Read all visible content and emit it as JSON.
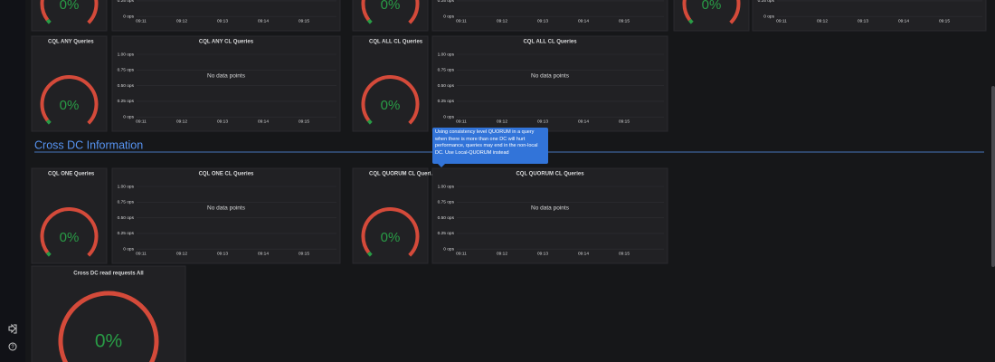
{
  "top_row": {
    "gauge_values": [
      "0%",
      "0%",
      "0%"
    ],
    "graphs": [
      {
        "yticks": [
          "0.25 ops",
          "0 ops"
        ],
        "xticks": [
          "09:11",
          "09:12",
          "09:13",
          "09:14",
          "09:15"
        ]
      },
      {
        "yticks": [
          "0.25 ops",
          "0 ops"
        ],
        "xticks": [
          "09:11",
          "09:12",
          "09:13",
          "09:14",
          "09:15"
        ]
      },
      {
        "yticks": [
          "0.25 ops",
          "0 ops"
        ],
        "xticks": [
          "09:11",
          "09:12",
          "09:13",
          "09:14",
          "09:15"
        ]
      }
    ]
  },
  "row_2": {
    "gauges": [
      {
        "title": "CQL ANY Queries",
        "value": "0%"
      },
      {
        "title": "CQL ALL CL Queries",
        "value": "0%"
      }
    ],
    "graphs": [
      {
        "title": "CQL ANY CL Queries",
        "message": "No data points",
        "yticks": [
          "1.00 ops",
          "0.75 ops",
          "0.50 ops",
          "0.25 ops",
          "0 ops"
        ],
        "xticks": [
          "09:11",
          "09:12",
          "09:13",
          "09:14",
          "09:15"
        ]
      },
      {
        "title": "CQL ALL CL Queries",
        "message": "No data points",
        "yticks": [
          "1.00 ops",
          "0.75 ops",
          "0.50 ops",
          "0.25 ops",
          "0 ops"
        ],
        "xticks": [
          "09:11",
          "09:12",
          "09:13",
          "09:14",
          "09:15"
        ]
      }
    ]
  },
  "section_title": "Cross DC Information",
  "row_3": {
    "gauges": [
      {
        "title": "CQL ONE Queries",
        "value": "0%"
      },
      {
        "title": "CQL QUORUM CL Queri...",
        "value": "0%"
      }
    ],
    "graphs": [
      {
        "title": "CQL ONE CL Queries",
        "message": "No data points",
        "yticks": [
          "1.00 ops",
          "0.75 ops",
          "0.50 ops",
          "0.25 ops",
          "0 ops"
        ],
        "xticks": [
          "09:11",
          "09:12",
          "09:13",
          "09:14",
          "09:15"
        ]
      },
      {
        "title": "CQL QUORUM CL Queries",
        "message": "No data points",
        "yticks": [
          "1.00 ops",
          "0.75 ops",
          "0.50 ops",
          "0.25 ops",
          "0 ops"
        ],
        "xticks": [
          "09:11",
          "09:12",
          "09:13",
          "09:14",
          "09:15"
        ]
      }
    ]
  },
  "tooltip": "Using consistency level QUORUM in a query when there is more than one DC will hurt performance, queries may end in the non-local DC. Use Local-QUORUM instead",
  "row_4": {
    "gauges": [
      {
        "title": "Cross DC read requests All",
        "value": "0%"
      }
    ]
  }
}
